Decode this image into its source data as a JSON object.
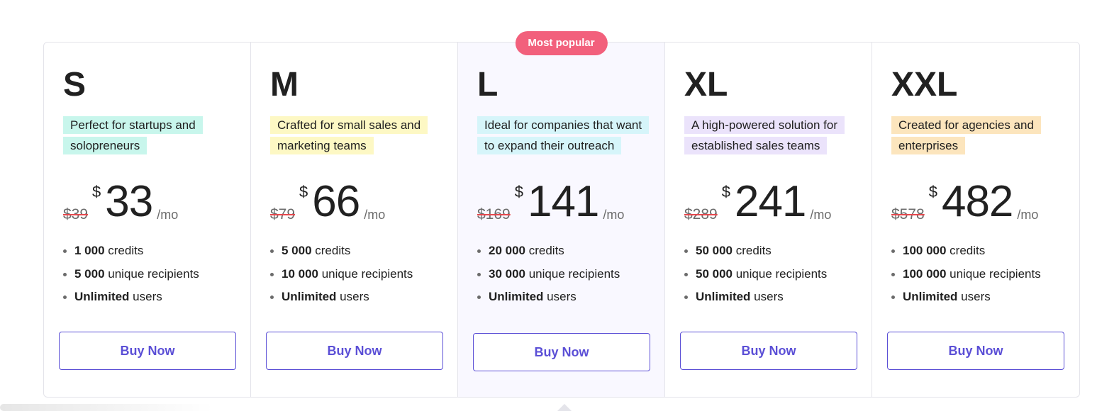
{
  "badge": {
    "label": "Most popular"
  },
  "buy_label": "Buy Now",
  "colors": {
    "accent": "#5b4fd6",
    "badge": "#f2607c",
    "strike": "#e5484d"
  },
  "plans": [
    {
      "name": "S",
      "tagline": "Perfect for startups and solopreneurs",
      "tagline_color": "#c8f6ec",
      "old_price": "$39",
      "currency": "$",
      "price": "33",
      "period": "/mo",
      "features": [
        {
          "value": "1 000",
          "text": " credits"
        },
        {
          "value": "5 000",
          "text": " unique recipients"
        },
        {
          "value": "Unlimited",
          "text": " users"
        }
      ]
    },
    {
      "name": "M",
      "tagline": "Crafted for small sales and marketing teams",
      "tagline_color": "#fdf8c4",
      "old_price": "$79",
      "currency": "$",
      "price": "66",
      "period": "/mo",
      "features": [
        {
          "value": "5 000",
          "text": " credits"
        },
        {
          "value": "10 000",
          "text": " unique recipients"
        },
        {
          "value": "Unlimited",
          "text": " users"
        }
      ]
    },
    {
      "name": "L",
      "tagline": "Ideal for companies that want to expand their outreach",
      "tagline_color": "#d6f5fa",
      "old_price": "$169",
      "currency": "$",
      "price": "141",
      "period": "/mo",
      "features": [
        {
          "value": "20 000",
          "text": " credits"
        },
        {
          "value": "30 000",
          "text": " unique recipients"
        },
        {
          "value": "Unlimited",
          "text": " users"
        }
      ]
    },
    {
      "name": "XL",
      "tagline": "A high-powered solution for established sales teams",
      "tagline_color": "#ebe3fb",
      "old_price": "$289",
      "currency": "$",
      "price": "241",
      "period": "/mo",
      "features": [
        {
          "value": "50 000",
          "text": " credits"
        },
        {
          "value": "50 000",
          "text": " unique recipients"
        },
        {
          "value": "Unlimited",
          "text": " users"
        }
      ]
    },
    {
      "name": "XXL",
      "tagline": "Created for agencies and enterprises",
      "tagline_color": "#fce5bd",
      "old_price": "$578",
      "currency": "$",
      "price": "482",
      "period": "/mo",
      "features": [
        {
          "value": "100 000",
          "text": " credits"
        },
        {
          "value": "100 000",
          "text": " unique recipients"
        },
        {
          "value": "Unlimited",
          "text": " users"
        }
      ]
    }
  ]
}
